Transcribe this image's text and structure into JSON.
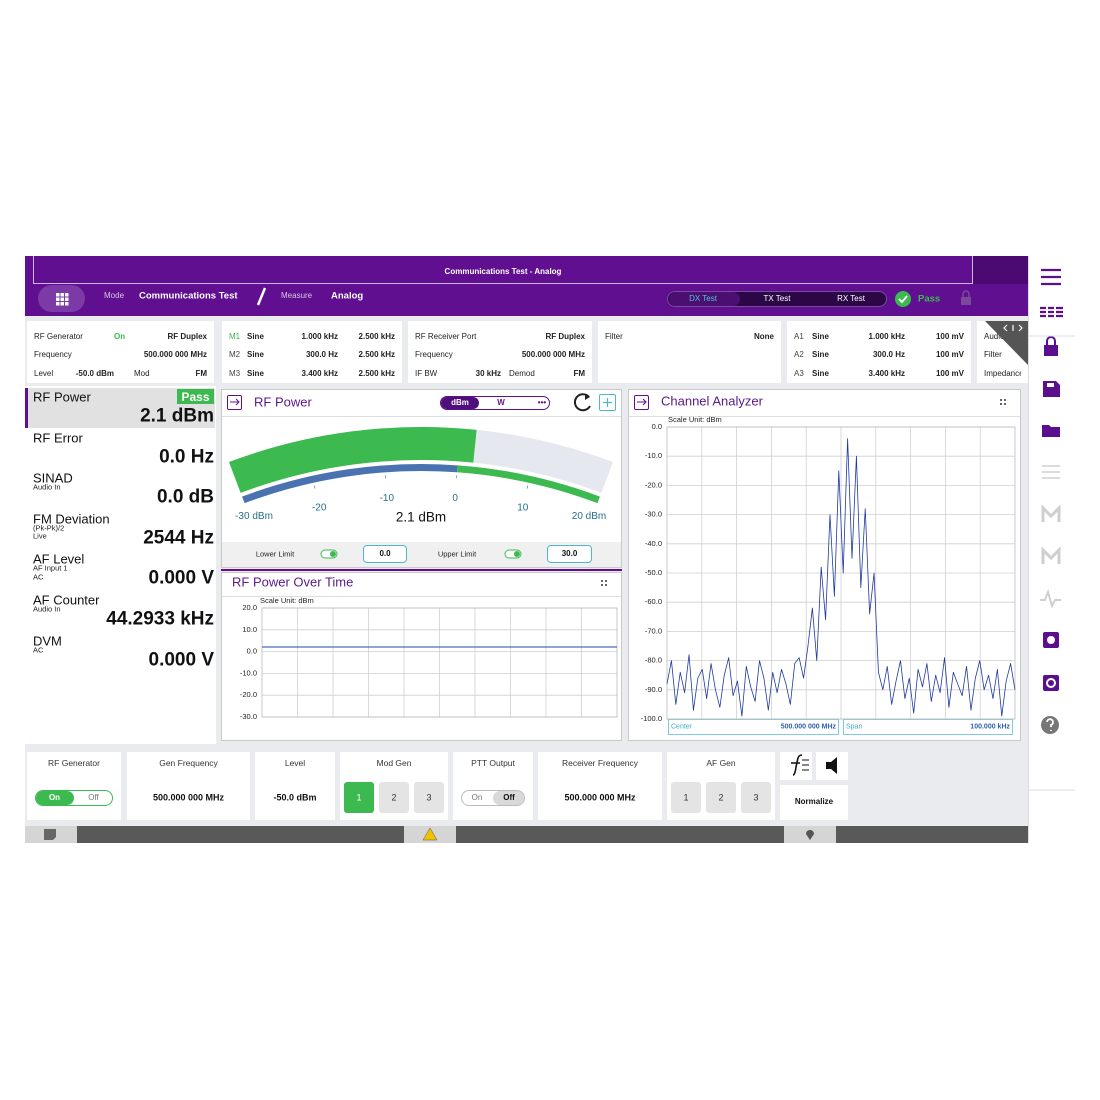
{
  "header": {
    "title": "Communications Test - Analog",
    "mode_label": "Mode",
    "mode": "Communications Test",
    "measure_label": "Measure",
    "measure": "Analog",
    "tabs": [
      "DX Test",
      "TX Test",
      "RX Test"
    ],
    "status": "Pass"
  },
  "info_panels": [
    {
      "rows": [
        [
          "RF Generator",
          "On",
          "RF Duplex"
        ],
        [
          "Frequency",
          "500.000 000 MHz"
        ],
        [
          "Level",
          "-50.0 dBm",
          "Mod",
          "FM"
        ]
      ]
    },
    {
      "rows": [
        [
          "M1",
          "Sine",
          "1.000 kHz",
          "2.500 kHz"
        ],
        [
          "M2",
          "Sine",
          "300.0 Hz",
          "2.500 kHz"
        ],
        [
          "M3",
          "Sine",
          "3.400 kHz",
          "2.500 kHz"
        ]
      ]
    },
    {
      "rows": [
        [
          "RF Receiver Port",
          "RF Duplex"
        ],
        [
          "Frequency",
          "500.000 000 MHz"
        ],
        [
          "IF BW",
          "30 kHz",
          "Demod",
          "FM"
        ]
      ]
    },
    {
      "rows": [
        [
          "Filter",
          "None"
        ]
      ]
    },
    {
      "rows": [
        [
          "A1",
          "Sine",
          "1.000 kHz",
          "100 mV"
        ],
        [
          "A2",
          "Sine",
          "300.0 Hz",
          "100 mV"
        ],
        [
          "A3",
          "Sine",
          "3.400 kHz",
          "100 mV"
        ]
      ]
    },
    {
      "rows": [
        [
          "Audio In So"
        ],
        [
          "Filter"
        ],
        [
          "Impedance"
        ]
      ]
    }
  ],
  "measurements": [
    {
      "name": "RF Power",
      "status": "Pass",
      "value": "2.1 dBm"
    },
    {
      "name": "RF Error",
      "value": "0.0 Hz"
    },
    {
      "name": "SINAD",
      "sub": [
        "Audio In"
      ],
      "value": "0.0 dB"
    },
    {
      "name": "FM Deviation",
      "sub": [
        "(Pk-Pk)/2",
        "Live"
      ],
      "value": "2544 Hz"
    },
    {
      "name": "AF Level",
      "sub": [
        "AF Input 1",
        "AC"
      ],
      "value": "0.000 V"
    },
    {
      "name": "AF Counter",
      "sub": [
        "Audio In"
      ],
      "value": "44.2933 kHz"
    },
    {
      "name": "DVM",
      "sub": [
        "AC"
      ],
      "value": "0.000 V"
    }
  ],
  "chart_data": [
    {
      "type": "gauge",
      "title": "RF Power",
      "units": [
        "dBm",
        "W",
        "•••"
      ],
      "value": 2.1,
      "value_label": "2.1 dBm",
      "xlim": [
        -30,
        20
      ],
      "xticks": [
        -20,
        -10,
        0,
        10
      ],
      "min_label": "-30 dBm",
      "max_label": "20 dBm",
      "color": "#3cb94f",
      "track_color": "#e6e8ef",
      "limit_color": "#4a72b0",
      "limits": [
        {
          "name": "Lower Limit",
          "value": 0,
          "value_label": "0.0"
        },
        {
          "name": "Upper Limit",
          "value": 30,
          "value_label": "30.0"
        }
      ]
    },
    {
      "type": "line",
      "title": "RF Power Over Time",
      "subtitle": "Scale Unit: dBm",
      "categories": [
        null,
        null,
        null,
        null,
        null,
        null,
        null,
        null,
        null,
        null
      ],
      "series": [
        {
          "color": "#4a6fc4",
          "values": [
            2.1,
            2.1,
            2.1,
            2.1,
            2.1,
            2.1,
            2.1,
            2.1,
            2.1,
            2.1
          ]
        }
      ],
      "ylim": [
        -30,
        20
      ],
      "yticks": [
        {
          "value": 20,
          "label": "20.0"
        },
        {
          "value": 10,
          "label": "10.0"
        },
        {
          "value": 0,
          "label": "0.0"
        },
        {
          "value": -10,
          "label": "-10.0"
        },
        {
          "value": -20,
          "label": "-20.0"
        },
        {
          "value": -30,
          "label": "-30.0"
        }
      ],
      "grid": true
    },
    {
      "type": "line",
      "title": "Channel Analyzer",
      "subtitle": "Scale Unit: dBm",
      "categories": [
        null,
        null,
        null,
        null,
        null,
        null,
        null,
        null,
        null,
        null,
        null,
        null,
        null,
        null,
        null,
        null,
        null,
        null,
        null,
        null,
        null,
        null,
        null,
        null,
        null,
        null,
        null,
        null,
        null,
        null,
        null,
        null,
        null,
        null,
        null,
        null,
        null,
        null,
        null,
        null,
        null,
        null,
        null,
        null,
        null,
        null,
        null,
        null,
        null,
        null,
        null,
        null,
        null,
        null,
        null,
        null,
        null,
        null,
        null,
        null,
        null,
        null,
        null,
        null,
        null,
        null,
        null,
        null,
        null,
        null,
        null,
        null,
        null,
        null,
        null,
        null,
        null,
        null,
        null,
        null
      ],
      "series": [
        {
          "color": "#1f3a9e",
          "values": [
            -88,
            -80,
            -95,
            -84,
            -91,
            -78,
            -97,
            -86,
            -83,
            -93,
            -81,
            -90,
            -96,
            -85,
            -79,
            -92,
            -87,
            -99,
            -82,
            -89,
            -94,
            -80,
            -86,
            -97,
            -84,
            -91,
            -83,
            -88,
            -95,
            -81,
            -79,
            -86,
            -75,
            -62,
            -80,
            -48,
            -66,
            -30,
            -58,
            -15,
            -50,
            -4,
            -45,
            -10,
            -55,
            -28,
            -64,
            -50,
            -84,
            -90,
            -82,
            -95,
            -87,
            -80,
            -93,
            -86,
            -98,
            -83,
            -89,
            -81,
            -94,
            -85,
            -91,
            -79,
            -96,
            -84,
            -88,
            -92,
            -82,
            -97,
            -86,
            -80,
            -90,
            -85,
            -93,
            -83,
            -99,
            -87,
            -81,
            -90
          ]
        }
      ],
      "ylim": [
        -100,
        0
      ],
      "yticks": [
        {
          "value": 0,
          "label": "0.0"
        },
        {
          "value": -10,
          "label": "-10.0"
        },
        {
          "value": -20,
          "label": "-20.0"
        },
        {
          "value": -30,
          "label": "-30.0"
        },
        {
          "value": -40,
          "label": "-40.0"
        },
        {
          "value": -50,
          "label": "-50.0"
        },
        {
          "value": -60,
          "label": "-60.0"
        },
        {
          "value": -70,
          "label": "-70.0"
        },
        {
          "value": -80,
          "label": "-80.0"
        },
        {
          "value": -90,
          "label": "-90.0"
        },
        {
          "value": -100,
          "label": "-100.0"
        }
      ],
      "grid": true,
      "center_label": "Center",
      "center": "500.000 000 MHz",
      "span_label": "Span",
      "span": "100.000 kHz"
    }
  ],
  "controls": [
    {
      "label": "RF Generator",
      "toggle": [
        "On",
        "Off"
      ],
      "active": 0
    },
    {
      "label": "Gen Frequency",
      "value": "500.000 000 MHz"
    },
    {
      "label": "Level",
      "value": "-50.0 dBm"
    },
    {
      "label": "Mod Gen",
      "buttons": [
        "1",
        "2",
        "3"
      ],
      "active": 0
    },
    {
      "label": "PTT Output",
      "toggle": [
        "On",
        "Off"
      ],
      "active": 1
    },
    {
      "label": "Receiver Frequency",
      "value": "500.000 000 MHz"
    },
    {
      "label": "AF Gen",
      "buttons": [
        "1",
        "2",
        "3"
      ]
    }
  ],
  "normalize": "Normalize"
}
